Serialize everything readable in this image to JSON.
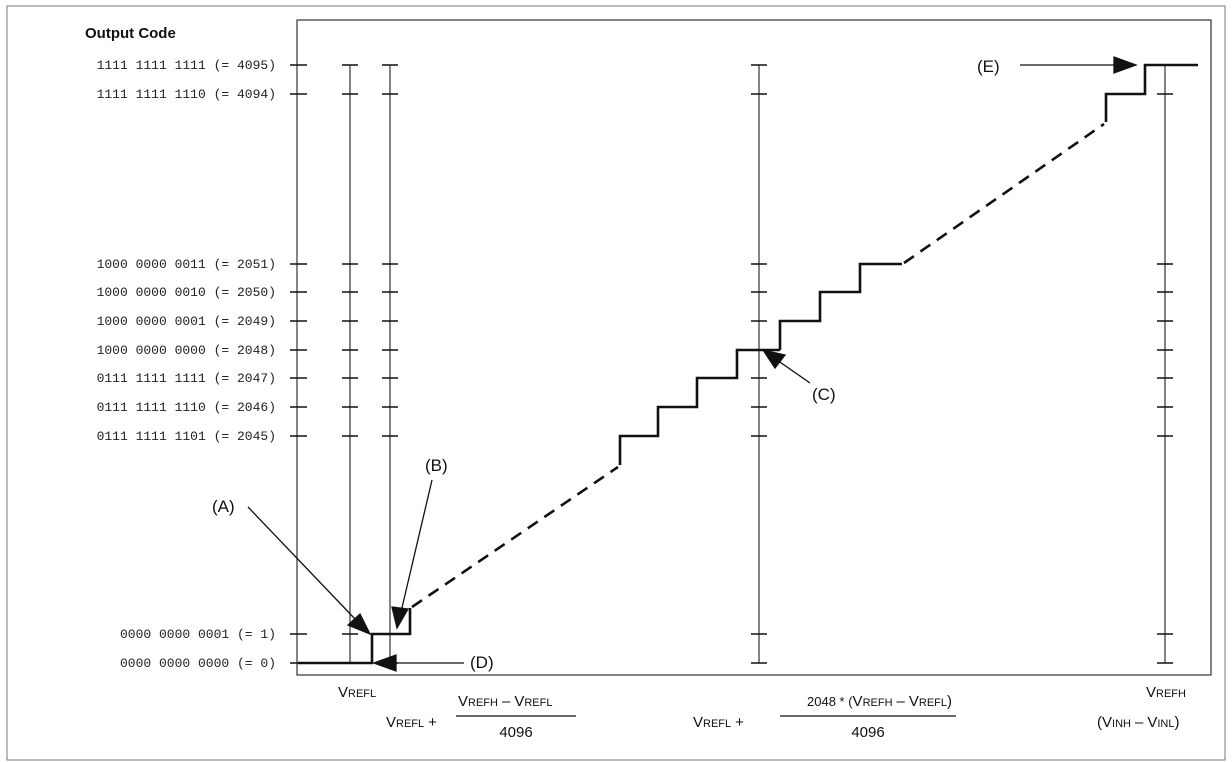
{
  "title": "Output Code",
  "codes": [
    {
      "text": "1111 1111 1111 (= 4095)"
    },
    {
      "text": "1111 1111 1110 (= 4094)"
    },
    {
      "text": "1000 0000 0011 (= 2051)"
    },
    {
      "text": "1000 0000 0010 (= 2050)"
    },
    {
      "text": "1000 0000 0001 (= 2049)"
    },
    {
      "text": "1000 0000 0000 (= 2048)"
    },
    {
      "text": "0111 1111 1111 (= 2047)"
    },
    {
      "text": "0111 1111 1110 (= 2046)"
    },
    {
      "text": "0111 1111 1101 (= 2045)"
    },
    {
      "text": "0000 0000 0001 (= 1)"
    },
    {
      "text": "0000 0000 0000 (= 0)"
    }
  ],
  "callouts": {
    "a": "(A)",
    "b": "(B)",
    "c": "(C)",
    "d": "(D)",
    "e": "(E)"
  },
  "xlabels": {
    "refl_big": "V",
    "refl_small": "REFL",
    "q1_prefix_big": "V",
    "q1_prefix_small": "REFL",
    "q1_plus": "+",
    "q1_num_a_big": "V",
    "q1_num_a_small": "REFH",
    "q1_minus": "–",
    "q1_num_b_big": "V",
    "q1_num_b_small": "REFL",
    "q1_den": "4096",
    "mid_prefix_big": "V",
    "mid_prefix_small": "REFL",
    "mid_plus": "+",
    "mid_num_pre": "2048 * (",
    "mid_num_a_big": "V",
    "mid_num_a_small": "REFH",
    "mid_minus": "–",
    "mid_num_b_big": "V",
    "mid_num_b_small": "REFL",
    "mid_num_post": ")",
    "mid_den": "4096",
    "refh_big": "V",
    "refh_small": "REFH",
    "vin_open": "(",
    "vin_a_big": "V",
    "vin_a_small": "INH",
    "vin_minus": "–",
    "vin_b_big": "V",
    "vin_b_small": "INL",
    "vin_close": ")"
  }
}
